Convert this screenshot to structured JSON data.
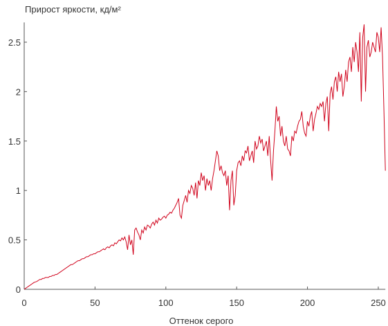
{
  "chart_data": {
    "type": "line",
    "title": "Прирост яркости, кд/м²",
    "x_label": "Оттенок серого",
    "xlim": [
      0,
      255
    ],
    "xticks": [
      0,
      50,
      100,
      150,
      200,
      250
    ],
    "ylim": [
      0,
      2.7
    ],
    "yticks": [
      0,
      0.5,
      1,
      1.5,
      2,
      2.5
    ],
    "x": [
      0,
      1,
      2,
      3,
      4,
      5,
      6,
      7,
      8,
      9,
      10,
      11,
      12,
      13,
      14,
      15,
      16,
      17,
      18,
      19,
      20,
      21,
      22,
      23,
      24,
      25,
      26,
      27,
      28,
      29,
      30,
      31,
      32,
      33,
      34,
      35,
      36,
      37,
      38,
      39,
      40,
      41,
      42,
      43,
      44,
      45,
      46,
      47,
      48,
      49,
      50,
      51,
      52,
      53,
      54,
      55,
      56,
      57,
      58,
      59,
      60,
      61,
      62,
      63,
      64,
      65,
      66,
      67,
      68,
      69,
      70,
      71,
      72,
      73,
      74,
      75,
      76,
      77,
      78,
      79,
      80,
      81,
      82,
      83,
      84,
      85,
      86,
      87,
      88,
      89,
      90,
      91,
      92,
      93,
      94,
      95,
      96,
      97,
      98,
      99,
      100,
      101,
      102,
      103,
      104,
      105,
      106,
      107,
      108,
      109,
      110,
      111,
      112,
      113,
      114,
      115,
      116,
      117,
      118,
      119,
      120,
      121,
      122,
      123,
      124,
      125,
      126,
      127,
      128,
      129,
      130,
      131,
      132,
      133,
      134,
      135,
      136,
      137,
      138,
      139,
      140,
      141,
      142,
      143,
      144,
      145,
      146,
      147,
      148,
      149,
      150,
      151,
      152,
      153,
      154,
      155,
      156,
      157,
      158,
      159,
      160,
      161,
      162,
      163,
      164,
      165,
      166,
      167,
      168,
      169,
      170,
      171,
      172,
      173,
      174,
      175,
      176,
      177,
      178,
      179,
      180,
      181,
      182,
      183,
      184,
      185,
      186,
      187,
      188,
      189,
      190,
      191,
      192,
      193,
      194,
      195,
      196,
      197,
      198,
      199,
      200,
      201,
      202,
      203,
      204,
      205,
      206,
      207,
      208,
      209,
      210,
      211,
      212,
      213,
      214,
      215,
      216,
      217,
      218,
      219,
      220,
      221,
      222,
      223,
      224,
      225,
      226,
      227,
      228,
      229,
      230,
      231,
      232,
      233,
      234,
      235,
      236,
      237,
      238,
      239,
      240,
      241,
      242,
      243,
      244,
      245,
      246,
      247,
      248,
      249,
      250,
      251,
      252,
      253,
      254,
      255
    ],
    "series": [
      {
        "color": "#d0021b",
        "values": [
          0,
          0.01,
          0.02,
          0.03,
          0.04,
          0.05,
          0.06,
          0.07,
          0.075,
          0.08,
          0.09,
          0.1,
          0.1,
          0.11,
          0.11,
          0.12,
          0.12,
          0.12,
          0.13,
          0.13,
          0.14,
          0.14,
          0.15,
          0.15,
          0.16,
          0.17,
          0.18,
          0.19,
          0.2,
          0.21,
          0.22,
          0.23,
          0.24,
          0.25,
          0.25,
          0.26,
          0.27,
          0.28,
          0.29,
          0.29,
          0.3,
          0.31,
          0.31,
          0.32,
          0.33,
          0.33,
          0.34,
          0.35,
          0.35,
          0.36,
          0.36,
          0.37,
          0.38,
          0.38,
          0.39,
          0.4,
          0.41,
          0.4,
          0.42,
          0.43,
          0.42,
          0.44,
          0.45,
          0.44,
          0.47,
          0.46,
          0.48,
          0.5,
          0.49,
          0.52,
          0.5,
          0.53,
          0.48,
          0.4,
          0.55,
          0.45,
          0.5,
          0.35,
          0.6,
          0.62,
          0.58,
          0.55,
          0.5,
          0.6,
          0.57,
          0.63,
          0.6,
          0.65,
          0.64,
          0.62,
          0.66,
          0.68,
          0.65,
          0.7,
          0.67,
          0.72,
          0.7,
          0.71,
          0.73,
          0.74,
          0.72,
          0.75,
          0.76,
          0.78,
          0.77,
          0.8,
          0.82,
          0.85,
          0.88,
          0.92,
          0.75,
          0.72,
          0.85,
          0.9,
          0.95,
          0.88,
          1.0,
          0.97,
          1.05,
          1.02,
          0.95,
          1.08,
          0.92,
          1.1,
          1.05,
          1.18,
          1.1,
          1.15,
          1.0,
          1.12,
          1.05,
          1.1,
          1.0,
          1.12,
          1.2,
          1.3,
          1.4,
          1.35,
          1.2,
          1.25,
          1.18,
          1.15,
          1.2,
          1.05,
          1.15,
          0.8,
          1.1,
          1.2,
          0.85,
          0.95,
          1.2,
          1.28,
          1.3,
          1.25,
          1.35,
          1.3,
          1.4,
          1.38,
          1.45,
          1.3,
          1.35,
          1.4,
          1.28,
          1.5,
          1.42,
          1.45,
          1.55,
          1.48,
          1.52,
          1.4,
          1.45,
          1.5,
          1.35,
          1.55,
          1.3,
          1.1,
          1.4,
          1.6,
          1.85,
          1.7,
          1.75,
          1.55,
          1.65,
          1.5,
          1.45,
          1.55,
          1.42,
          1.4,
          1.35,
          1.55,
          1.5,
          1.6,
          1.58,
          1.65,
          1.7,
          1.72,
          1.8,
          1.65,
          1.58,
          1.55,
          1.7,
          1.65,
          1.75,
          1.8,
          1.6,
          1.72,
          1.78,
          1.85,
          1.82,
          1.88,
          1.85,
          1.9,
          1.7,
          1.88,
          1.95,
          1.6,
          1.98,
          2.05,
          1.92,
          2.1,
          2.15,
          2.0,
          2.2,
          2.1,
          2.18,
          1.95,
          2.05,
          2.22,
          2.1,
          2.3,
          2.35,
          2.2,
          2.45,
          2.3,
          2.5,
          2.4,
          2.2,
          2.6,
          1.9,
          2.55,
          2.68,
          2.0,
          2.45,
          2.52,
          2.35,
          2.4,
          2.5,
          2.45,
          2.4,
          2.6,
          2.55,
          2.4,
          2.65,
          2.35,
          1.8,
          1.2
        ]
      }
    ]
  }
}
